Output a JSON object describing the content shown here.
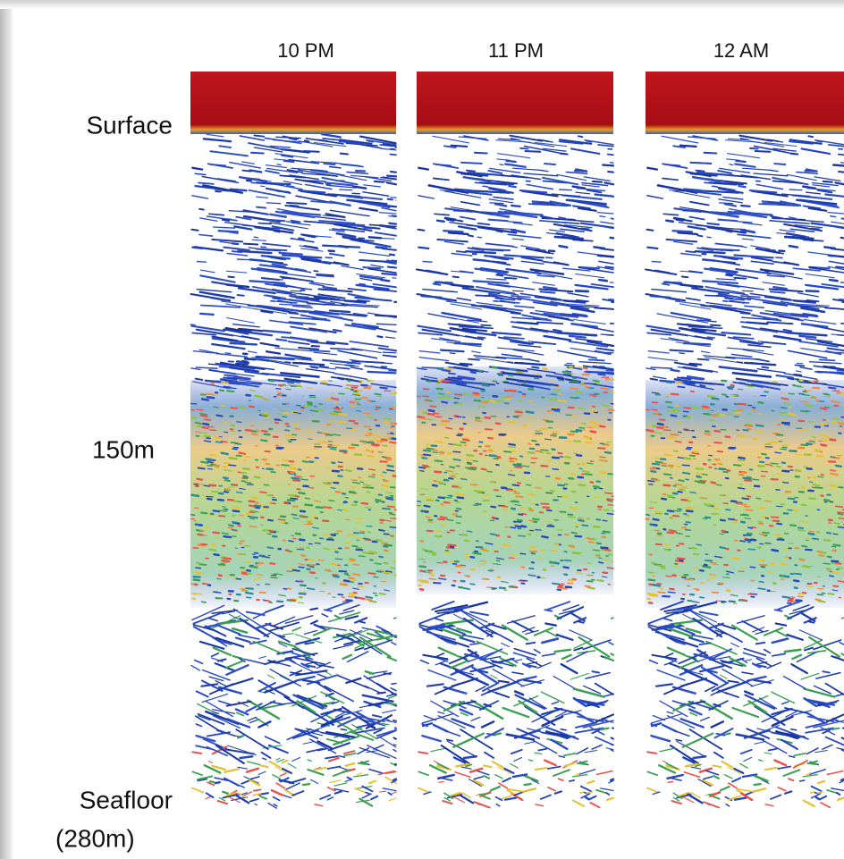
{
  "columns": [
    {
      "label": "10 PM"
    },
    {
      "label": "11 PM"
    },
    {
      "label": "12 AM"
    }
  ],
  "depth_labels": [
    "Surface",
    "150m",
    "Seafloor",
    "(280m)"
  ]
}
